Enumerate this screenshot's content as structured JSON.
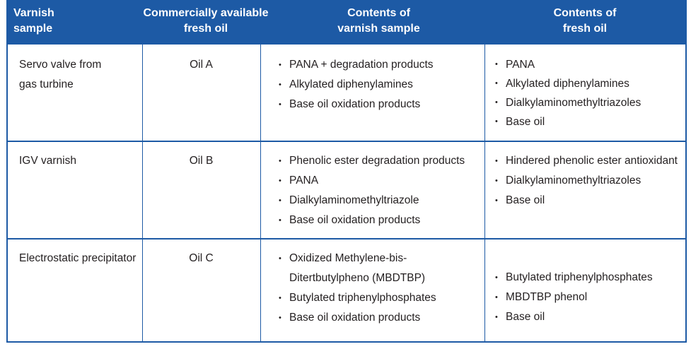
{
  "colors": {
    "header_bg": "#1d5aa5",
    "header_text": "#ffffff",
    "body_text": "#231f20",
    "border": "#1d5aa5"
  },
  "headers": [
    [
      "Varnish",
      "sample"
    ],
    [
      "Commercially available",
      "fresh oil"
    ],
    [
      "Contents of",
      "varnish sample"
    ],
    [
      "Contents of",
      "fresh oil"
    ]
  ],
  "rows": [
    {
      "sample": [
        "Servo valve from",
        "gas turbine"
      ],
      "oil": "Oil A",
      "varnish_contents": [
        "PANA + degradation products",
        "Alkylated diphenylamines",
        "Base oil oxidation products"
      ],
      "fresh_contents": [
        "PANA",
        "Alkylated diphenylamines",
        "Dialkylaminomethyltriazoles",
        "Base oil"
      ]
    },
    {
      "sample": [
        "IGV varnish"
      ],
      "oil": "Oil B",
      "varnish_contents": [
        "Phenolic ester degradation products",
        "PANA",
        "Dialkylaminomethyltriazole",
        "Base oil oxidation products"
      ],
      "fresh_contents": [
        "Hindered phenolic ester antioxidant",
        "Dialkylaminomethyltriazoles",
        "Base oil"
      ]
    },
    {
      "sample": [
        "Electrostatic precipitator"
      ],
      "oil": "Oil C",
      "varnish_contents": [
        "Oxidized Methylene-bis-",
        "Ditertbutylpheno (MBDTBP)",
        "Butylated triphenylphosphates",
        "Base oil oxidation products"
      ],
      "fresh_contents": [
        "Butylated triphenylphosphates",
        "MBDTBP phenol",
        "Base oil"
      ]
    }
  ]
}
